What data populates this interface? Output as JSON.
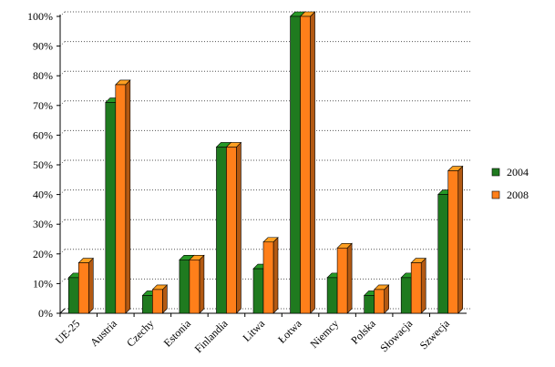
{
  "chart_data": {
    "type": "bar",
    "title": "",
    "xlabel": "",
    "ylabel": "",
    "categories": [
      "UE-25",
      "Austria",
      "Czechy",
      "Estonia",
      "Finlandia",
      "Litwa",
      "Łotwa",
      "Niemcy",
      "Polska",
      "Słowacja",
      "Szwecja"
    ],
    "series": [
      {
        "name": "2004",
        "color": "#1f7a1f",
        "values": [
          12,
          71,
          6,
          18,
          56,
          15,
          100,
          12,
          6,
          12,
          40
        ]
      },
      {
        "name": "2008",
        "color": "#ff7f1a",
        "values": [
          17,
          77,
          8,
          18,
          56,
          24,
          100,
          22,
          8,
          17,
          48
        ]
      }
    ],
    "ylim": [
      0,
      100
    ],
    "yticks": [
      "0%",
      "10%",
      "20%",
      "30%",
      "40%",
      "50%",
      "60%",
      "70%",
      "80%",
      "90%",
      "100%"
    ],
    "grid": true,
    "legend_position": "right",
    "bar_style": "3d"
  }
}
